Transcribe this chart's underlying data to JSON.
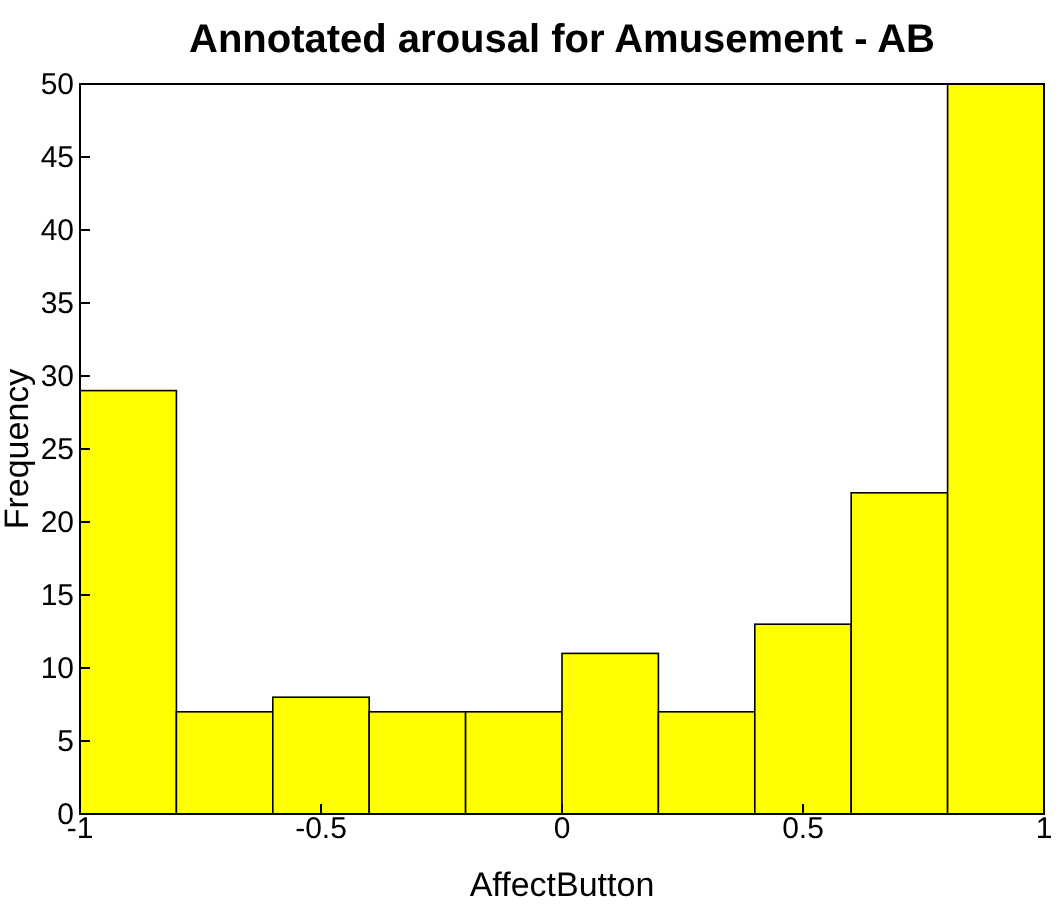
{
  "chart_data": {
    "type": "histogram",
    "title": "Annotated arousal for Amusement - AB",
    "xlabel": "AffectButton",
    "ylabel": "Frequency",
    "bins": [
      -1,
      -0.8,
      -0.6,
      -0.4,
      -0.2,
      0,
      0.2,
      0.4,
      0.6,
      0.8,
      1
    ],
    "values": [
      29,
      7,
      8,
      7,
      7,
      11,
      7,
      13,
      22,
      50
    ],
    "color": "#ffff00",
    "xlim": [
      -1,
      1
    ],
    "xticks": [
      -1,
      -0.5,
      0,
      0.5,
      1
    ],
    "ylim": [
      0,
      50
    ],
    "yticks": [
      0,
      5,
      10,
      15,
      20,
      25,
      30,
      35,
      40,
      45,
      50
    ],
    "grid": false
  }
}
